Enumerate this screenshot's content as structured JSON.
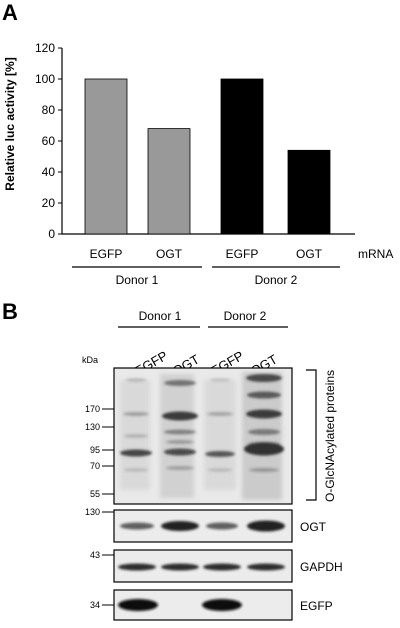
{
  "panel_a": {
    "label": "A",
    "mrna_label": "mRNA"
  },
  "panel_b": {
    "label": "B",
    "kda_label": "kDa",
    "donor_labels": [
      "Donor 1",
      "Donor 2"
    ],
    "lane_labels": [
      "EGFP",
      "OGT",
      "EGFP",
      "OGT"
    ],
    "blots": [
      {
        "name": "O-GlcNAcylated proteins",
        "markers": [
          "170",
          "130",
          "95",
          "70",
          "55"
        ]
      },
      {
        "name": "OGT",
        "markers": [
          "130"
        ]
      },
      {
        "name": "GAPDH",
        "markers": [
          "43"
        ]
      },
      {
        "name": "EGFP",
        "markers": [
          "34"
        ]
      }
    ]
  },
  "chart_data": {
    "type": "bar",
    "categories": [
      "EGFP",
      "OGT",
      "EGFP",
      "OGT"
    ],
    "groups": [
      "Donor 1",
      "Donor 1",
      "Donor 2",
      "Donor 2"
    ],
    "values": [
      100,
      68,
      100,
      54
    ],
    "bar_colors": [
      "#999999",
      "#999999",
      "#000000",
      "#000000"
    ],
    "ylabel": "Relative luc activity [%]",
    "ylim": [
      0,
      120
    ],
    "yticks": [
      0,
      20,
      40,
      60,
      80,
      100,
      120
    ],
    "grid": false
  }
}
